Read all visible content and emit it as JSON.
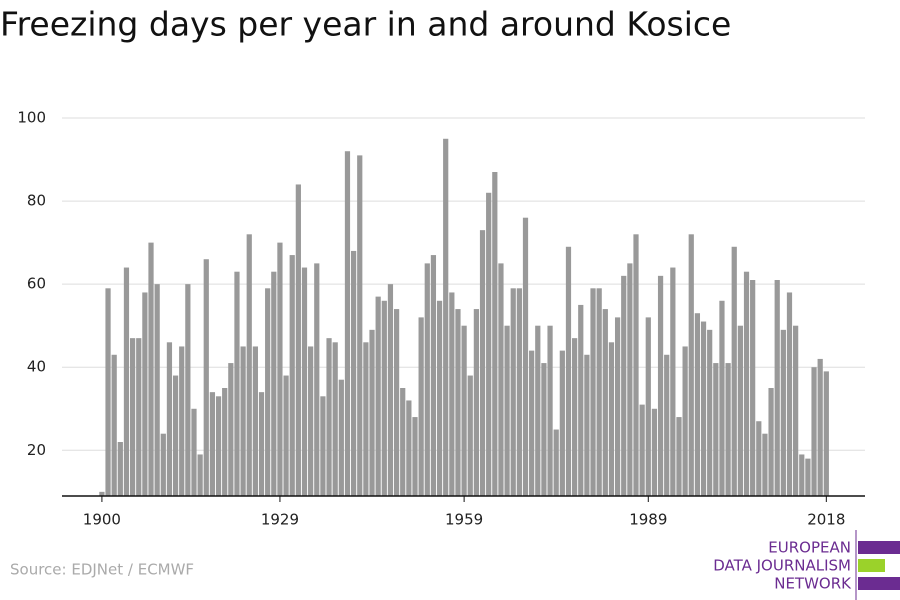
{
  "chart_data": {
    "type": "bar",
    "title": "Freezing days per year in and around Kosice",
    "source": "Source: EDJNet / ECMWF",
    "logo": [
      "EUROPEAN",
      "DATA JOURNALISM",
      "NETWORK"
    ],
    "color": "#999999",
    "grid": true,
    "x": [
      1900,
      1901,
      1902,
      1903,
      1904,
      1905,
      1906,
      1907,
      1908,
      1909,
      1910,
      1911,
      1912,
      1913,
      1914,
      1915,
      1916,
      1917,
      1918,
      1919,
      1920,
      1921,
      1922,
      1923,
      1924,
      1925,
      1926,
      1927,
      1928,
      1929,
      1930,
      1931,
      1932,
      1933,
      1934,
      1935,
      1936,
      1937,
      1938,
      1939,
      1940,
      1941,
      1942,
      1943,
      1944,
      1945,
      1946,
      1947,
      1948,
      1949,
      1950,
      1951,
      1952,
      1953,
      1954,
      1955,
      1956,
      1957,
      1958,
      1959,
      1960,
      1961,
      1962,
      1963,
      1964,
      1965,
      1966,
      1967,
      1968,
      1969,
      1970,
      1971,
      1972,
      1973,
      1974,
      1975,
      1976,
      1977,
      1978,
      1979,
      1980,
      1981,
      1982,
      1983,
      1984,
      1985,
      1986,
      1987,
      1988,
      1989,
      1990,
      1991,
      1992,
      1993,
      1994,
      1995,
      1996,
      1997,
      1998,
      1999,
      2000,
      2001,
      2002,
      2003,
      2004,
      2005,
      2006,
      2007,
      2008,
      2009,
      2010,
      2011,
      2012,
      2013,
      2014,
      2015,
      2016,
      2017,
      2018
    ],
    "values": [
      10,
      59,
      43,
      22,
      64,
      47,
      47,
      58,
      70,
      60,
      24,
      46,
      38,
      45,
      60,
      30,
      19,
      66,
      34,
      33,
      35,
      41,
      63,
      45,
      72,
      45,
      34,
      59,
      63,
      70,
      38,
      67,
      84,
      64,
      45,
      65,
      33,
      47,
      46,
      37,
      92,
      68,
      91,
      46,
      49,
      57,
      56,
      60,
      54,
      35,
      32,
      28,
      52,
      65,
      67,
      56,
      95,
      58,
      54,
      50,
      38,
      54,
      73,
      82,
      87,
      65,
      50,
      59,
      59,
      76,
      44,
      50,
      41,
      50,
      25,
      44,
      69,
      47,
      55,
      43,
      59,
      59,
      54,
      46,
      52,
      62,
      65,
      72,
      31,
      52,
      30,
      62,
      43,
      64,
      28,
      45,
      72,
      53,
      51,
      49,
      41,
      56,
      41,
      69,
      50,
      63,
      61,
      27,
      24,
      35,
      61,
      49,
      58,
      50,
      19,
      18,
      40,
      42,
      39
    ],
    "xlim": [
      1893.5,
      2024.3
    ],
    "xticks": [
      1900,
      1929,
      1959,
      1989,
      2018
    ],
    "ylim": [
      9,
      100
    ],
    "yticks": [
      20,
      40,
      60,
      80,
      100
    ]
  }
}
